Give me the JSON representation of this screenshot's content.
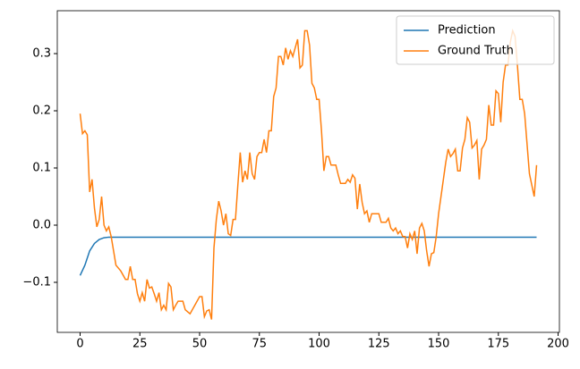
{
  "chart_data": {
    "type": "line",
    "xlim": [
      -9.55,
      200.55
    ],
    "xticks": [
      0,
      25,
      50,
      75,
      100,
      125,
      150,
      175,
      200
    ],
    "ylim": [
      -0.1875,
      0.375
    ],
    "yticks": [
      {
        "value": -0.1,
        "label": "−0.1"
      },
      {
        "value": 0.0,
        "label": "0.0"
      },
      {
        "value": 0.1,
        "label": "0.1"
      },
      {
        "value": 0.2,
        "label": "0.2"
      },
      {
        "value": 0.3,
        "label": "0.3"
      }
    ],
    "legend": "upper right",
    "series": [
      {
        "name": "Prediction",
        "color": "#1f77b4",
        "x": [
          0,
          2,
          4,
          6,
          8,
          10,
          12,
          15,
          191
        ],
        "values": [
          -0.088,
          -0.07,
          -0.045,
          -0.032,
          -0.025,
          -0.022,
          -0.021,
          -0.021,
          -0.021
        ]
      },
      {
        "name": "Ground Truth",
        "color": "#ff7f0e",
        "x": [
          0,
          1,
          2,
          3,
          4,
          5,
          6,
          7,
          8,
          9,
          10,
          11,
          12,
          13,
          14,
          15,
          17,
          19,
          20,
          21,
          22,
          23,
          24,
          25,
          26,
          27,
          28,
          29,
          30,
          31,
          32,
          33,
          34,
          35,
          36,
          37,
          38,
          39,
          40,
          41,
          43,
          44,
          46,
          48,
          50,
          51,
          52,
          53,
          54,
          55,
          56,
          57,
          58,
          59,
          60,
          61,
          62,
          63,
          64,
          65,
          66,
          67,
          68,
          69,
          70,
          71,
          72,
          73,
          74,
          75,
          76,
          77,
          78,
          79,
          80,
          81,
          82,
          83,
          84,
          85,
          86,
          87,
          88,
          89,
          90,
          91,
          92,
          93,
          94,
          95,
          96,
          97,
          98,
          99,
          100,
          101,
          102,
          103,
          104,
          105,
          106,
          107,
          108,
          109,
          110,
          111,
          112,
          113,
          114,
          115,
          116,
          117,
          118,
          119,
          120,
          121,
          122,
          123,
          124,
          125,
          126,
          127,
          128,
          129,
          130,
          131,
          132,
          133,
          134,
          135,
          136,
          137,
          138,
          139,
          140,
          141,
          142,
          143,
          144,
          145,
          146,
          147,
          148,
          149,
          150,
          151,
          152,
          153,
          154,
          155,
          156,
          157,
          158,
          159,
          160,
          161,
          162,
          163,
          164,
          165,
          166,
          167,
          168,
          169,
          170,
          171,
          172,
          173,
          174,
          175,
          176,
          177,
          178,
          179,
          180,
          181,
          182,
          183,
          184,
          185,
          186,
          188,
          190,
          191
        ],
        "values": [
          0.195,
          0.16,
          0.165,
          0.158,
          0.058,
          0.08,
          0.03,
          -0.003,
          0.01,
          0.05,
          0.0,
          -0.01,
          -0.003,
          -0.02,
          -0.045,
          -0.07,
          -0.08,
          -0.095,
          -0.095,
          -0.072,
          -0.095,
          -0.095,
          -0.12,
          -0.133,
          -0.118,
          -0.133,
          -0.095,
          -0.11,
          -0.108,
          -0.12,
          -0.133,
          -0.118,
          -0.148,
          -0.14,
          -0.148,
          -0.102,
          -0.108,
          -0.148,
          -0.14,
          -0.133,
          -0.133,
          -0.148,
          -0.155,
          -0.14,
          -0.125,
          -0.125,
          -0.16,
          -0.15,
          -0.148,
          -0.165,
          -0.04,
          0.01,
          0.042,
          0.025,
          0.0,
          0.02,
          -0.015,
          -0.018,
          0.01,
          0.01,
          0.07,
          0.127,
          0.075,
          0.095,
          0.08,
          0.127,
          0.09,
          0.08,
          0.12,
          0.127,
          0.127,
          0.15,
          0.127,
          0.165,
          0.165,
          0.225,
          0.24,
          0.295,
          0.295,
          0.28,
          0.31,
          0.29,
          0.305,
          0.295,
          0.31,
          0.325,
          0.275,
          0.28,
          0.34,
          0.34,
          0.315,
          0.248,
          0.24,
          0.22,
          0.22,
          0.165,
          0.095,
          0.12,
          0.12,
          0.105,
          0.105,
          0.105,
          0.088,
          0.073,
          0.073,
          0.073,
          0.08,
          0.075,
          0.088,
          0.082,
          0.028,
          0.072,
          0.04,
          0.02,
          0.025,
          0.005,
          0.02,
          0.02,
          0.02,
          0.02,
          0.005,
          0.005,
          0.005,
          0.012,
          -0.005,
          -0.01,
          -0.005,
          -0.015,
          -0.01,
          -0.02,
          -0.02,
          -0.04,
          -0.015,
          -0.025,
          -0.01,
          -0.05,
          -0.005,
          0.003,
          -0.01,
          -0.045,
          -0.072,
          -0.05,
          -0.048,
          -0.02,
          0.02,
          0.05,
          0.08,
          0.11,
          0.133,
          0.12,
          0.125,
          0.133,
          0.095,
          0.095,
          0.135,
          0.15,
          0.188,
          0.18,
          0.135,
          0.14,
          0.148,
          0.08,
          0.133,
          0.14,
          0.15,
          0.21,
          0.175,
          0.175,
          0.235,
          0.23,
          0.18,
          0.25,
          0.28,
          0.28,
          0.32,
          0.34,
          0.33,
          0.278,
          0.22,
          0.22,
          0.195,
          0.09,
          0.05,
          0.105
        ]
      }
    ]
  }
}
